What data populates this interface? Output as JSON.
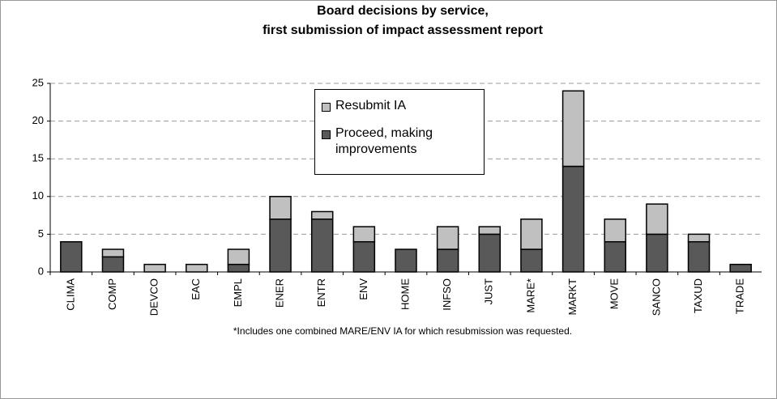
{
  "chart_data": {
    "type": "stacked-bar",
    "title": [
      "Board decisions by service,",
      "first submission of impact assessment report"
    ],
    "footnote": "*Includes one combined MARE/ENV IA for which resubmission was requested.",
    "categories": [
      "CLIMA",
      "COMP",
      "DEVCO",
      "EAC",
      "EMPL",
      "ENER",
      "ENTR",
      "ENV",
      "HOME",
      "INFSO",
      "JUST",
      "MARE*",
      "MARKT",
      "MOVE",
      "SANCO",
      "TAXUD",
      "TRADE"
    ],
    "series": [
      {
        "name": "Proceed, making improvements",
        "color": "#595959",
        "values": [
          4,
          2,
          0,
          0,
          1,
          7,
          7,
          4,
          3,
          3,
          5,
          3,
          14,
          4,
          5,
          4,
          1
        ]
      },
      {
        "name": "Resubmit IA",
        "color": "#c0c0c0",
        "values": [
          0,
          1,
          1,
          1,
          2,
          3,
          1,
          2,
          0,
          3,
          1,
          4,
          10,
          3,
          4,
          1,
          0
        ]
      }
    ],
    "ylim": [
      0,
      25
    ],
    "yticks": [
      0,
      5,
      10,
      15,
      20,
      25
    ],
    "grid": true,
    "legend": "top-center"
  }
}
